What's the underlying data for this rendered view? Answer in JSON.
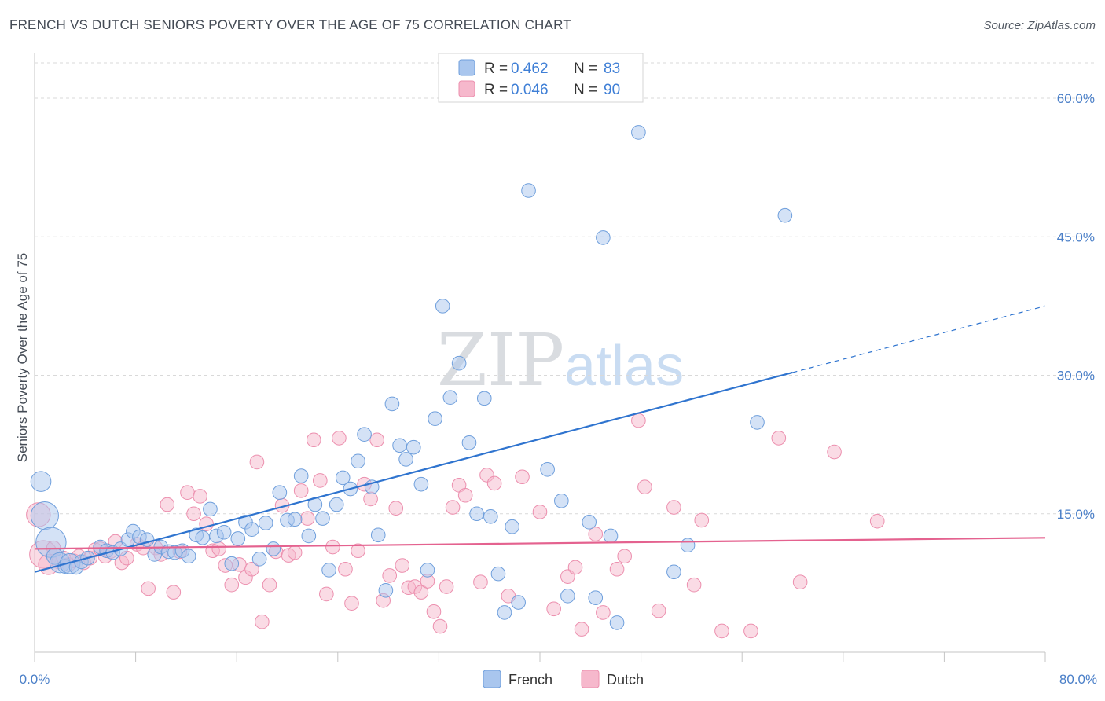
{
  "title": "FRENCH VS DUTCH SENIORS POVERTY OVER THE AGE OF 75 CORRELATION CHART",
  "source": "Source: ZipAtlas.com",
  "watermark": {
    "zip": "ZIP",
    "atlas": "atlas"
  },
  "colors": {
    "french_fill": "#a9c6ee",
    "french_stroke": "#6f9fdc",
    "french_line": "#2f74cf",
    "dutch_fill": "#f6b8cc",
    "dutch_stroke": "#ec8fae",
    "dutch_line": "#e4628f",
    "grid": "#d9d9d9",
    "tick_text": "#4a7fc8"
  },
  "legend": {
    "french": {
      "r_label": "R = ",
      "r_value": "0.462",
      "n_label": "N = ",
      "n_value": "83"
    },
    "dutch": {
      "r_label": "R = ",
      "r_value": "0.046",
      "n_label": "N = ",
      "n_value": "90"
    }
  },
  "chart_data": {
    "type": "scatter",
    "title": "FRENCH VS DUTCH SENIORS POVERTY OVER THE AGE OF 75 CORRELATION CHART",
    "xlabel": "",
    "ylabel": "Seniors Poverty Over the Age of 75",
    "xlim": [
      0,
      80
    ],
    "ylim": [
      0,
      64
    ],
    "y_ticks": [
      15,
      30,
      45,
      60
    ],
    "y_tick_labels": [
      "15.0%",
      "30.0%",
      "45.0%",
      "60.0%"
    ],
    "x_tick_labels": {
      "min": "0.0%",
      "max": "80.0%"
    },
    "grid": true,
    "legend_position": "top-center",
    "series": [
      {
        "name": "French",
        "r": 0.462,
        "n": 83,
        "trend": {
          "x0": 0,
          "y0": 8.7,
          "x1": 60,
          "y1": 30.3,
          "dashed_to_x": 80,
          "dashed_to_y": 37.5
        },
        "points": [
          [
            0.5,
            18.5,
            1.6
          ],
          [
            0.8,
            14.8,
            2.2
          ],
          [
            1.3,
            11.9,
            2.4
          ],
          [
            1.6,
            10.4,
            1.3
          ],
          [
            2.0,
            9.7,
            1.6
          ],
          [
            2.4,
            9.3,
            1.1
          ],
          [
            2.8,
            9.6,
            1.6
          ],
          [
            3.3,
            9.2,
            1.1
          ],
          [
            3.7,
            9.8,
            1.1
          ],
          [
            4.2,
            10.2,
            1.1
          ],
          [
            5.2,
            11.4,
            1.1
          ],
          [
            5.7,
            11.0,
            1.1
          ],
          [
            6.2,
            10.8,
            1.1
          ],
          [
            6.8,
            11.2,
            1.1
          ],
          [
            7.4,
            12.2,
            1.1
          ],
          [
            7.8,
            13.1,
            1.1
          ],
          [
            8.3,
            12.5,
            1.1
          ],
          [
            8.9,
            12.2,
            1.1
          ],
          [
            9.5,
            10.6,
            1.1
          ],
          [
            10.0,
            11.4,
            1.1
          ],
          [
            10.6,
            10.9,
            1.1
          ],
          [
            11.1,
            10.8,
            1.1
          ],
          [
            11.7,
            11.0,
            1.1
          ],
          [
            12.2,
            10.4,
            1.1
          ],
          [
            12.8,
            12.7,
            1.1
          ],
          [
            13.3,
            12.4,
            1.1
          ],
          [
            13.9,
            15.5,
            1.1
          ],
          [
            14.4,
            12.6,
            1.1
          ],
          [
            15.0,
            13.0,
            1.1
          ],
          [
            15.6,
            9.6,
            1.1
          ],
          [
            16.1,
            12.3,
            1.1
          ],
          [
            16.7,
            14.1,
            1.1
          ],
          [
            17.2,
            13.3,
            1.1
          ],
          [
            17.8,
            10.1,
            1.1
          ],
          [
            18.3,
            14.0,
            1.1
          ],
          [
            18.9,
            11.2,
            1.1
          ],
          [
            19.4,
            17.3,
            1.1
          ],
          [
            20.0,
            14.3,
            1.1
          ],
          [
            20.6,
            14.4,
            1.1
          ],
          [
            21.1,
            19.1,
            1.1
          ],
          [
            21.7,
            12.6,
            1.1
          ],
          [
            22.2,
            16.0,
            1.1
          ],
          [
            22.8,
            14.5,
            1.1
          ],
          [
            23.3,
            8.9,
            1.1
          ],
          [
            23.9,
            16.0,
            1.1
          ],
          [
            24.4,
            18.9,
            1.1
          ],
          [
            25.0,
            17.7,
            1.1
          ],
          [
            25.6,
            20.7,
            1.1
          ],
          [
            26.1,
            23.6,
            1.1
          ],
          [
            26.7,
            17.9,
            1.1
          ],
          [
            27.2,
            12.7,
            1.1
          ],
          [
            27.8,
            6.7,
            1.1
          ],
          [
            28.3,
            26.9,
            1.1
          ],
          [
            28.9,
            22.4,
            1.1
          ],
          [
            29.4,
            20.9,
            1.1
          ],
          [
            30.0,
            22.2,
            1.1
          ],
          [
            30.6,
            18.2,
            1.1
          ],
          [
            31.1,
            8.9,
            1.1
          ],
          [
            31.7,
            25.3,
            1.1
          ],
          [
            32.3,
            37.5,
            1.1
          ],
          [
            32.9,
            27.6,
            1.1
          ],
          [
            33.6,
            31.3,
            1.1
          ],
          [
            34.4,
            22.7,
            1.1
          ],
          [
            35.0,
            15.0,
            1.1
          ],
          [
            35.6,
            27.5,
            1.1
          ],
          [
            36.1,
            14.7,
            1.1
          ],
          [
            36.7,
            8.5,
            1.1
          ],
          [
            37.2,
            4.3,
            1.1
          ],
          [
            37.8,
            13.6,
            1.1
          ],
          [
            38.3,
            5.4,
            1.1
          ],
          [
            39.1,
            50.0,
            1.1
          ],
          [
            40.6,
            19.8,
            1.1
          ],
          [
            41.7,
            16.4,
            1.1
          ],
          [
            42.2,
            6.1,
            1.1
          ],
          [
            43.9,
            14.1,
            1.1
          ],
          [
            44.4,
            5.9,
            1.1
          ],
          [
            45.0,
            44.9,
            1.1
          ],
          [
            45.6,
            12.6,
            1.1
          ],
          [
            46.1,
            3.2,
            1.1
          ],
          [
            47.8,
            56.3,
            1.1
          ],
          [
            50.6,
            8.7,
            1.1
          ],
          [
            51.7,
            11.6,
            1.1
          ],
          [
            57.2,
            24.9,
            1.1
          ],
          [
            59.4,
            47.3,
            1.1
          ]
        ]
      },
      {
        "name": "Dutch",
        "r": 0.046,
        "n": 90,
        "trend": {
          "x0": 0,
          "y0": 11.2,
          "x1": 80,
          "y1": 12.4
        },
        "points": [
          [
            0.3,
            14.9,
            1.9
          ],
          [
            0.7,
            10.6,
            2.2
          ],
          [
            1.1,
            9.5,
            1.6
          ],
          [
            1.5,
            11.3,
            1.1
          ],
          [
            1.9,
            9.8,
            1.1
          ],
          [
            2.3,
            10.2,
            1.1
          ],
          [
            2.7,
            9.5,
            1.1
          ],
          [
            3.1,
            9.9,
            1.1
          ],
          [
            3.5,
            10.4,
            1.1
          ],
          [
            3.9,
            9.7,
            1.1
          ],
          [
            4.4,
            10.2,
            1.1
          ],
          [
            4.8,
            11.1,
            1.1
          ],
          [
            5.2,
            11.2,
            1.1
          ],
          [
            5.6,
            10.4,
            1.1
          ],
          [
            6.0,
            10.9,
            1.1
          ],
          [
            6.4,
            12.0,
            1.1
          ],
          [
            6.9,
            9.7,
            1.1
          ],
          [
            7.3,
            10.2,
            1.1
          ],
          [
            8.1,
            11.7,
            1.1
          ],
          [
            8.6,
            11.3,
            1.1
          ],
          [
            9.0,
            6.9,
            1.1
          ],
          [
            9.6,
            11.3,
            1.1
          ],
          [
            10.0,
            10.6,
            1.1
          ],
          [
            10.5,
            16.0,
            1.1
          ],
          [
            11.0,
            6.5,
            1.1
          ],
          [
            11.5,
            10.9,
            1.1
          ],
          [
            12.1,
            17.3,
            1.1
          ],
          [
            12.6,
            15.0,
            1.1
          ],
          [
            13.1,
            16.9,
            1.1
          ],
          [
            13.6,
            13.9,
            1.1
          ],
          [
            14.1,
            11.0,
            1.1
          ],
          [
            14.6,
            11.2,
            1.1
          ],
          [
            15.1,
            9.4,
            1.1
          ],
          [
            15.6,
            7.3,
            1.1
          ],
          [
            16.2,
            9.5,
            1.1
          ],
          [
            16.7,
            8.1,
            1.1
          ],
          [
            17.2,
            9.0,
            1.1
          ],
          [
            17.6,
            20.6,
            1.1
          ],
          [
            18.0,
            3.3,
            1.1
          ],
          [
            18.6,
            7.3,
            1.1
          ],
          [
            19.1,
            10.9,
            1.1
          ],
          [
            19.6,
            15.9,
            1.1
          ],
          [
            20.1,
            10.5,
            1.1
          ],
          [
            20.6,
            10.8,
            1.1
          ],
          [
            21.1,
            17.5,
            1.1
          ],
          [
            21.6,
            14.5,
            1.1
          ],
          [
            22.1,
            23.0,
            1.1
          ],
          [
            22.6,
            18.6,
            1.1
          ],
          [
            23.1,
            6.3,
            1.1
          ],
          [
            23.6,
            11.4,
            1.1
          ],
          [
            24.1,
            23.2,
            1.1
          ],
          [
            24.6,
            9.0,
            1.1
          ],
          [
            25.1,
            5.3,
            1.1
          ],
          [
            25.6,
            11.0,
            1.1
          ],
          [
            26.1,
            18.2,
            1.1
          ],
          [
            26.6,
            16.6,
            1.1
          ],
          [
            27.1,
            23.0,
            1.1
          ],
          [
            27.6,
            5.6,
            1.1
          ],
          [
            28.1,
            8.3,
            1.1
          ],
          [
            28.6,
            15.6,
            1.1
          ],
          [
            29.1,
            9.4,
            1.1
          ],
          [
            29.6,
            7.0,
            1.1
          ],
          [
            30.1,
            7.1,
            1.1
          ],
          [
            30.6,
            6.5,
            1.1
          ],
          [
            31.1,
            7.7,
            1.1
          ],
          [
            31.6,
            4.4,
            1.1
          ],
          [
            32.1,
            2.8,
            1.1
          ],
          [
            32.6,
            7.1,
            1.1
          ],
          [
            33.1,
            15.7,
            1.1
          ],
          [
            33.6,
            18.1,
            1.1
          ],
          [
            34.1,
            17.0,
            1.1
          ],
          [
            35.3,
            7.6,
            1.1
          ],
          [
            35.8,
            19.2,
            1.1
          ],
          [
            36.4,
            18.3,
            1.1
          ],
          [
            37.5,
            6.1,
            1.1
          ],
          [
            38.6,
            19.0,
            1.1
          ],
          [
            40.0,
            15.2,
            1.1
          ],
          [
            41.1,
            4.7,
            1.1
          ],
          [
            42.2,
            8.2,
            1.1
          ],
          [
            42.8,
            9.2,
            1.1
          ],
          [
            43.3,
            2.5,
            1.1
          ],
          [
            44.4,
            12.8,
            1.1
          ],
          [
            45.0,
            4.3,
            1.1
          ],
          [
            46.1,
            9.0,
            1.1
          ],
          [
            46.7,
            10.4,
            1.1
          ],
          [
            47.8,
            25.1,
            1.1
          ],
          [
            48.3,
            17.9,
            1.1
          ],
          [
            49.4,
            4.5,
            1.1
          ],
          [
            50.6,
            15.7,
            1.1
          ],
          [
            52.2,
            7.3,
            1.1
          ],
          [
            52.8,
            14.3,
            1.1
          ],
          [
            54.4,
            2.3,
            1.1
          ],
          [
            56.7,
            2.3,
            1.1
          ],
          [
            58.9,
            23.2,
            1.1
          ],
          [
            60.6,
            7.6,
            1.1
          ],
          [
            63.3,
            21.7,
            1.1
          ],
          [
            66.7,
            14.2,
            1.1
          ]
        ]
      }
    ]
  },
  "bottom_legend": [
    {
      "label": "French"
    },
    {
      "label": "Dutch"
    }
  ]
}
